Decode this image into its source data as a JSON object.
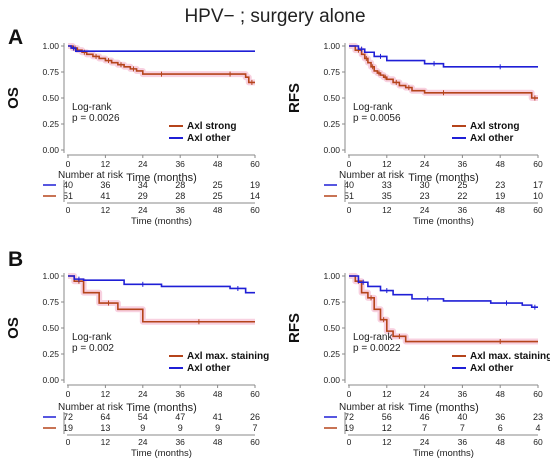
{
  "figure": {
    "title": "HPV− ; surgery alone",
    "colors": {
      "strong": "#b5441b",
      "other": "#1f1fd6",
      "band": "#f6c6d8",
      "axis": "#888888",
      "text": "#222222"
    }
  },
  "sections": [
    {
      "letter": "A"
    },
    {
      "letter": "B"
    }
  ],
  "chart_data": [
    {
      "type": "line",
      "panel": "A-OS",
      "ylabel": "OS",
      "xlabel": "Time (months)",
      "xlim": [
        0,
        60
      ],
      "ylim": [
        0,
        1
      ],
      "xticks": [
        0,
        12,
        24,
        36,
        48,
        60
      ],
      "yticks": [
        0.0,
        0.25,
        0.5,
        0.75,
        1.0
      ],
      "ytick_labels": [
        "0.00",
        "0.25",
        "0.50",
        "0.75",
        "1.00"
      ],
      "pvalue": [
        "Log-rank",
        "p = 0.0026"
      ],
      "legend": [
        "Axl strong",
        "Axl other"
      ],
      "series": [
        {
          "name": "Axl strong",
          "colorKey": "strong",
          "x": [
            0,
            1.5,
            3,
            4.5,
            6,
            8,
            10,
            12,
            14,
            16,
            18,
            20,
            22,
            24,
            36,
            47,
            57,
            58,
            60
          ],
          "y": [
            1.0,
            0.98,
            0.96,
            0.94,
            0.92,
            0.9,
            0.88,
            0.86,
            0.84,
            0.82,
            0.8,
            0.78,
            0.76,
            0.73,
            0.73,
            0.73,
            0.7,
            0.65,
            0.65
          ]
        },
        {
          "name": "Axl other",
          "colorKey": "other",
          "x": [
            0,
            1,
            2.5,
            60
          ],
          "y": [
            1.0,
            0.98,
            0.95,
            0.95
          ]
        }
      ],
      "risk": {
        "times": [
          0,
          12,
          24,
          36,
          48,
          60
        ],
        "rows": [
          {
            "colorKey": "other",
            "values": [
              "40",
              "36",
              "34",
              "28",
              "25",
              "19"
            ]
          },
          {
            "colorKey": "strong",
            "values": [
              "51",
              "41",
              "29",
              "28",
              "25",
              "14"
            ]
          }
        ]
      }
    },
    {
      "type": "line",
      "panel": "A-RFS",
      "ylabel": "RFS",
      "xlabel": "Time (months)",
      "xlim": [
        0,
        60
      ],
      "ylim": [
        0,
        1
      ],
      "xticks": [
        0,
        12,
        24,
        36,
        48,
        60
      ],
      "yticks": [
        0.0,
        0.25,
        0.5,
        0.75,
        1.0
      ],
      "ytick_labels": [
        "0.00",
        "0.25",
        "0.50",
        "0.75",
        "1.00"
      ],
      "pvalue": [
        "Log-rank",
        "p = 0.0056"
      ],
      "legend": [
        "Axl strong",
        "Axl other"
      ],
      "series": [
        {
          "name": "Axl strong",
          "colorKey": "strong",
          "x": [
            0,
            2,
            4,
            5,
            6,
            7,
            8,
            9,
            10,
            11,
            12,
            14,
            16,
            18,
            20,
            24,
            36,
            58,
            60
          ],
          "y": [
            1.0,
            0.96,
            0.92,
            0.88,
            0.84,
            0.8,
            0.76,
            0.74,
            0.72,
            0.7,
            0.68,
            0.65,
            0.62,
            0.6,
            0.57,
            0.55,
            0.55,
            0.5,
            0.5
          ]
        },
        {
          "name": "Axl other",
          "colorKey": "other",
          "x": [
            0,
            3,
            5,
            8,
            12,
            24,
            30,
            36,
            60
          ],
          "y": [
            1.0,
            0.97,
            0.94,
            0.9,
            0.86,
            0.83,
            0.8,
            0.8,
            0.8
          ]
        }
      ],
      "risk": {
        "times": [
          0,
          12,
          24,
          36,
          48,
          60
        ],
        "rows": [
          {
            "colorKey": "other",
            "values": [
              "40",
              "33",
              "30",
              "25",
              "23",
              "17"
            ]
          },
          {
            "colorKey": "strong",
            "values": [
              "51",
              "35",
              "23",
              "22",
              "19",
              "10"
            ]
          }
        ]
      }
    },
    {
      "type": "line",
      "panel": "B-OS",
      "ylabel": "OS",
      "xlabel": "Time (months)",
      "xlim": [
        0,
        60
      ],
      "ylim": [
        0,
        1
      ],
      "xticks": [
        0,
        12,
        24,
        36,
        48,
        60
      ],
      "yticks": [
        0.0,
        0.25,
        0.5,
        0.75,
        1.0
      ],
      "ytick_labels": [
        "0.00",
        "0.25",
        "0.50",
        "0.75",
        "1.00"
      ],
      "pvalue": [
        "Log-rank",
        "p = 0.002"
      ],
      "legend": [
        "Axl max. staining",
        "Axl other"
      ],
      "series": [
        {
          "name": "Axl max. staining",
          "colorKey": "strong",
          "x": [
            0,
            2,
            5,
            10,
            16,
            24,
            60
          ],
          "y": [
            1.0,
            0.95,
            0.84,
            0.74,
            0.68,
            0.56,
            0.56
          ]
        },
        {
          "name": "Axl other",
          "colorKey": "other",
          "x": [
            0,
            2,
            5,
            18,
            30,
            52,
            57,
            60
          ],
          "y": [
            1.0,
            0.97,
            0.96,
            0.92,
            0.9,
            0.88,
            0.84,
            0.84
          ]
        }
      ],
      "risk": {
        "times": [
          0,
          12,
          24,
          36,
          48,
          60
        ],
        "rows": [
          {
            "colorKey": "other",
            "values": [
              "72",
              "64",
              "54",
              "47",
              "41",
              "26"
            ]
          },
          {
            "colorKey": "strong",
            "values": [
              "19",
              "13",
              "9",
              "9",
              "9",
              "7"
            ]
          }
        ]
      }
    },
    {
      "type": "line",
      "panel": "B-RFS",
      "ylabel": "RFS",
      "xlabel": "Time (months)",
      "xlim": [
        0,
        60
      ],
      "ylim": [
        0,
        1
      ],
      "xticks": [
        0,
        12,
        24,
        36,
        48,
        60
      ],
      "yticks": [
        0.0,
        0.25,
        0.5,
        0.75,
        1.0
      ],
      "ytick_labels": [
        "0.00",
        "0.25",
        "0.50",
        "0.75",
        "1.00"
      ],
      "pvalue": [
        "Log-rank",
        "p = 0.0022"
      ],
      "legend": [
        "Axl max. staining",
        "Axl other"
      ],
      "series": [
        {
          "name": "Axl max. staining",
          "colorKey": "strong",
          "x": [
            0,
            2,
            4,
            6,
            8,
            10,
            12,
            14,
            18,
            36,
            60
          ],
          "y": [
            1.0,
            0.95,
            0.84,
            0.79,
            0.68,
            0.58,
            0.47,
            0.42,
            0.37,
            0.37,
            0.37
          ]
        },
        {
          "name": "Axl other",
          "colorKey": "other",
          "x": [
            0,
            3,
            6,
            10,
            14,
            20,
            30,
            45,
            55,
            58,
            60
          ],
          "y": [
            1.0,
            0.94,
            0.9,
            0.86,
            0.82,
            0.78,
            0.76,
            0.74,
            0.72,
            0.7,
            0.7
          ]
        }
      ],
      "risk": {
        "times": [
          0,
          12,
          24,
          36,
          48,
          60
        ],
        "rows": [
          {
            "colorKey": "other",
            "values": [
              "72",
              "56",
              "46",
              "40",
              "36",
              "23"
            ]
          },
          {
            "colorKey": "strong",
            "values": [
              "19",
              "12",
              "7",
              "7",
              "6",
              "4"
            ]
          }
        ]
      }
    }
  ],
  "risk_table": {
    "title": "Number at risk",
    "xlabel": "Time (months)"
  }
}
